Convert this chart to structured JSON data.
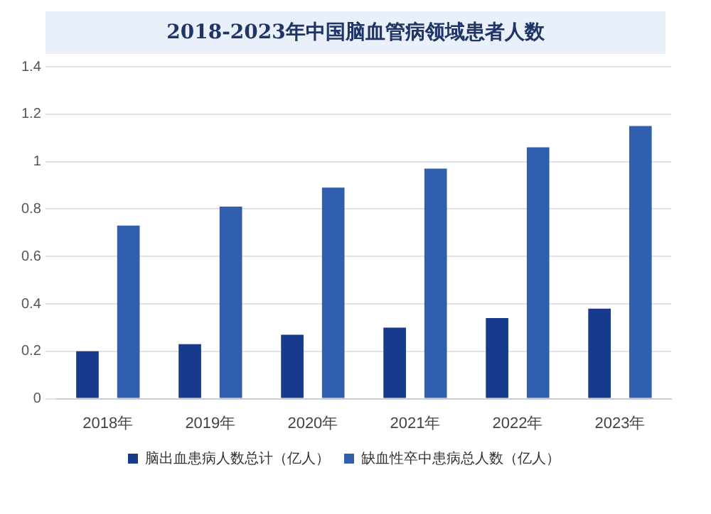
{
  "chart_data": {
    "type": "bar",
    "title": "2018-2023年中国脑血管病领域患者人数",
    "categories": [
      "2018年",
      "2019年",
      "2020年",
      "2021年",
      "2022年",
      "2023年"
    ],
    "series": [
      {
        "name": "脑出血患病人数总计（亿人）",
        "color": "#173a8c",
        "values": [
          0.2,
          0.23,
          0.27,
          0.3,
          0.34,
          0.38
        ]
      },
      {
        "name": "缺血性卒中患病总人数（亿人）",
        "color": "#2f5fae",
        "values": [
          0.73,
          0.81,
          0.89,
          0.97,
          1.06,
          1.15
        ]
      }
    ],
    "ylim": [
      0,
      1.4
    ],
    "yticks": [
      0,
      0.2,
      0.4,
      0.6,
      0.8,
      1,
      1.2,
      1.4
    ],
    "grid": "y",
    "legend": "bottom"
  }
}
